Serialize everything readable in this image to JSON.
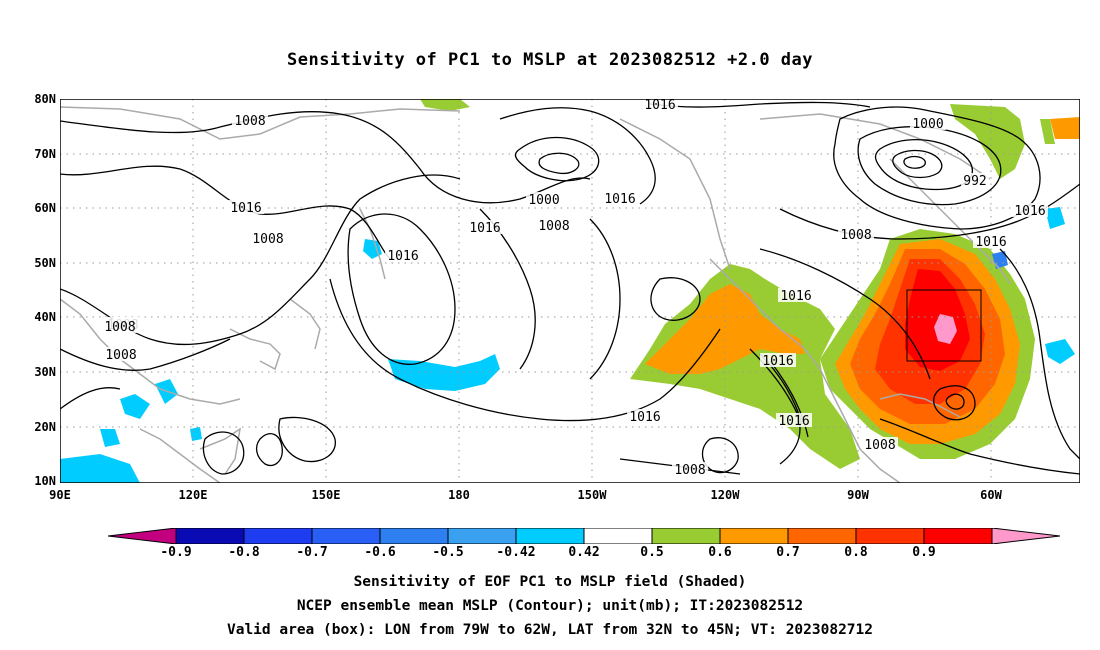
{
  "title": "Sensitivity of PC1 to MSLP at 2023082512 +2.0 day",
  "axes": {
    "lat_labels": [
      "80N",
      "70N",
      "60N",
      "50N",
      "40N",
      "30N",
      "20N",
      "10N"
    ],
    "lon_labels": [
      "90E",
      "120E",
      "150E",
      "180",
      "150W",
      "120W",
      "90W",
      "60W"
    ]
  },
  "contour_labels": [
    {
      "text": "1008"
    },
    {
      "text": "1016"
    },
    {
      "text": "1016"
    },
    {
      "text": "1008"
    },
    {
      "text": "1000"
    },
    {
      "text": "1008"
    },
    {
      "text": "1016"
    },
    {
      "text": "1016"
    },
    {
      "text": "1008"
    },
    {
      "text": "1008"
    },
    {
      "text": "1008"
    },
    {
      "text": "1000"
    },
    {
      "text": "992"
    },
    {
      "text": "1016"
    },
    {
      "text": "1008"
    },
    {
      "text": "1016"
    },
    {
      "text": "1016"
    },
    {
      "text": "1016"
    },
    {
      "text": "1016"
    },
    {
      "text": "1016"
    },
    {
      "text": "1008"
    },
    {
      "text": "1008"
    },
    {
      "text": "1016"
    }
  ],
  "colorbar": {
    "labels": [
      "-0.9",
      "-0.8",
      "-0.7",
      "-0.6",
      "-0.5",
      "-0.42",
      "0.42",
      "0.5",
      "0.6",
      "0.7",
      "0.8",
      "0.9"
    ],
    "colors": [
      "#c2007f",
      "#0a0ab4",
      "#1e3cf0",
      "#2a5ff5",
      "#2e7ff0",
      "#3aa0f0",
      "#00ccff",
      "#ffffff",
      "#99cc33",
      "#ff9900",
      "#ff6600",
      "#ff3300",
      "#ff0000",
      "#ff99cc"
    ]
  },
  "valid_box": {
    "lon": [
      -79,
      -62
    ],
    "lat": [
      32,
      45
    ]
  },
  "captions": {
    "line1": "Sensitivity of EOF PC1 to MSLP field (Shaded)",
    "line2": "NCEP ensemble mean MSLP (Contour); unit(mb); IT:2023082512",
    "line3": "Valid area (box): LON from 79W to 62W, LAT from 32N to 45N; VT: 2023082712"
  }
}
